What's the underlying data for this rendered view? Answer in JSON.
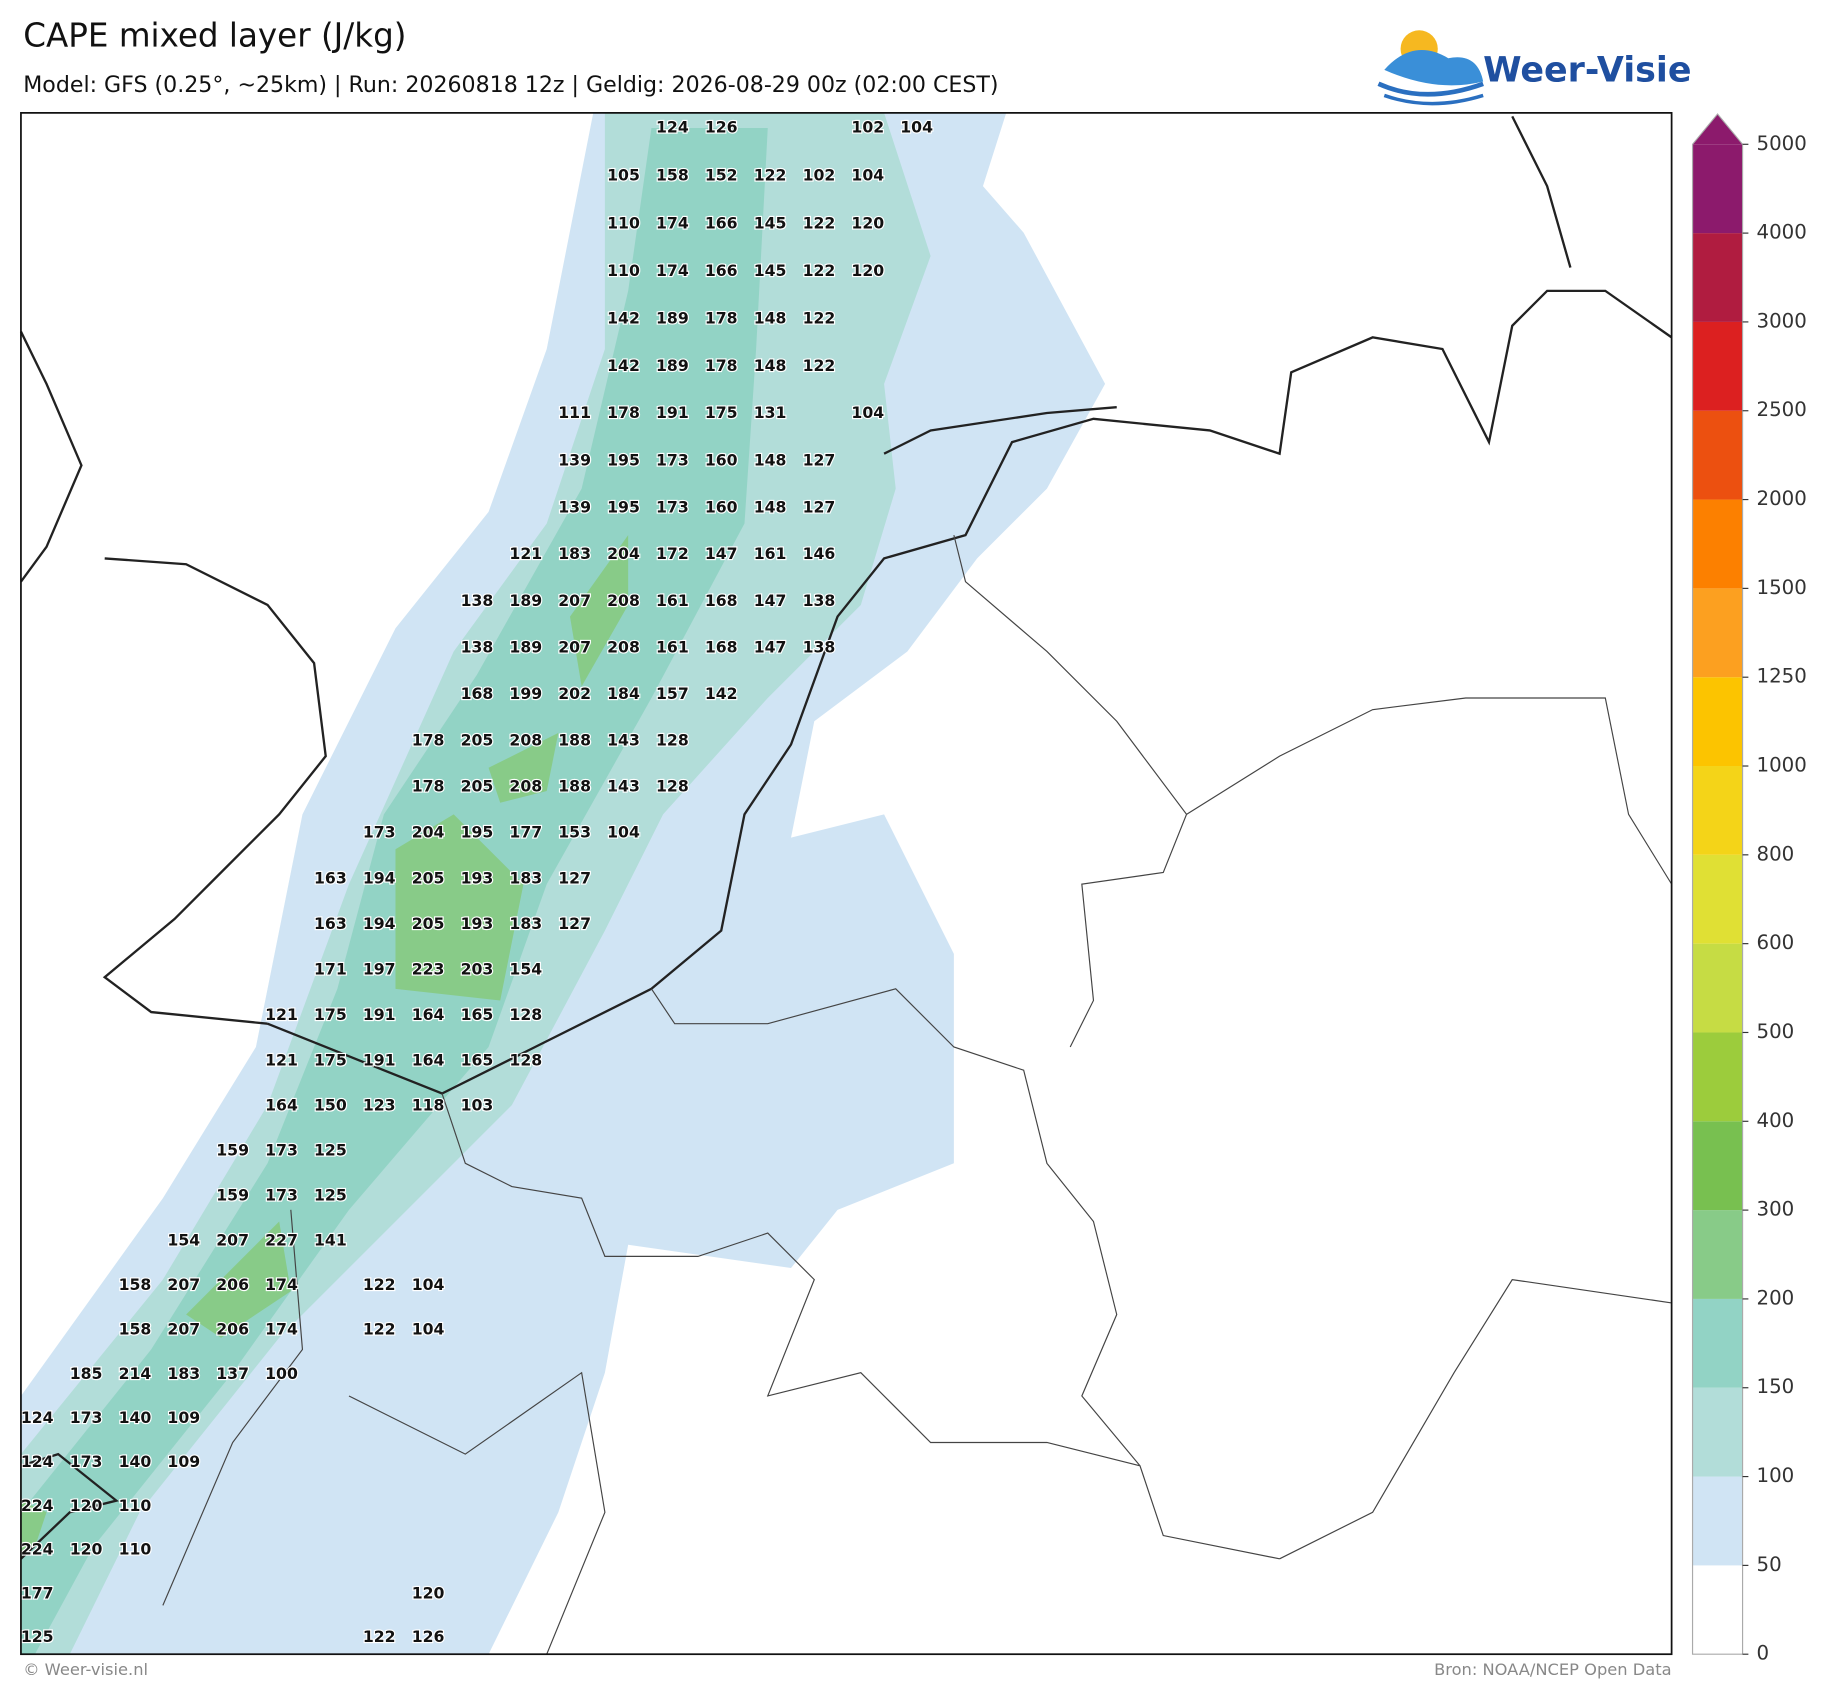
{
  "header": {
    "title": "CAPE mixed layer (J/kg)",
    "subtitle": "Model: GFS (0.25°, ~25km)  |  Run: 20260818 12z  |  Geldig: 2026-08-29 00z (02:00 CEST)",
    "logo": "Weer-Visie"
  },
  "map": {
    "grid_labels": [
      [
        null,
        null,
        null,
        null,
        null,
        null,
        null,
        null,
        null,
        null,
        null,
        null,
        null,
        124,
        126,
        null,
        null,
        102,
        104
      ],
      [
        null,
        null,
        null,
        null,
        null,
        null,
        null,
        null,
        null,
        null,
        null,
        null,
        105,
        158,
        152,
        122,
        102,
        104,
        null
      ],
      [
        null,
        null,
        null,
        null,
        null,
        null,
        null,
        null,
        null,
        null,
        null,
        null,
        110,
        174,
        166,
        145,
        122,
        120,
        null
      ],
      [
        null,
        null,
        null,
        null,
        null,
        null,
        null,
        null,
        null,
        null,
        null,
        null,
        110,
        174,
        166,
        145,
        122,
        120,
        null
      ],
      [
        null,
        null,
        null,
        null,
        null,
        null,
        null,
        null,
        null,
        null,
        null,
        null,
        142,
        189,
        178,
        148,
        122,
        null,
        null
      ],
      [
        null,
        null,
        null,
        null,
        null,
        null,
        null,
        null,
        null,
        null,
        null,
        null,
        142,
        189,
        178,
        148,
        122,
        null,
        null
      ],
      [
        null,
        null,
        null,
        null,
        null,
        null,
        null,
        null,
        null,
        null,
        null,
        111,
        178,
        191,
        175,
        131,
        null,
        104,
        null
      ],
      [
        null,
        null,
        null,
        null,
        null,
        null,
        null,
        null,
        null,
        null,
        null,
        139,
        195,
        173,
        160,
        148,
        127,
        null,
        null
      ],
      [
        null,
        null,
        null,
        null,
        null,
        null,
        null,
        null,
        null,
        null,
        null,
        139,
        195,
        173,
        160,
        148,
        127,
        null,
        null
      ],
      [
        null,
        null,
        null,
        null,
        null,
        null,
        null,
        null,
        null,
        null,
        121,
        183,
        204,
        172,
        147,
        161,
        146,
        null,
        null
      ],
      [
        null,
        null,
        null,
        null,
        null,
        null,
        null,
        null,
        null,
        138,
        189,
        207,
        208,
        161,
        168,
        147,
        138,
        null,
        null
      ],
      [
        null,
        null,
        null,
        null,
        null,
        null,
        null,
        null,
        null,
        138,
        189,
        207,
        208,
        161,
        168,
        147,
        138,
        null,
        null
      ],
      [
        null,
        null,
        null,
        null,
        null,
        null,
        null,
        null,
        null,
        168,
        199,
        202,
        184,
        157,
        142,
        null,
        null,
        null,
        null
      ],
      [
        null,
        null,
        null,
        null,
        null,
        null,
        null,
        null,
        178,
        205,
        208,
        188,
        143,
        128,
        null,
        null,
        null,
        null,
        null
      ],
      [
        null,
        null,
        null,
        null,
        null,
        null,
        null,
        null,
        178,
        205,
        208,
        188,
        143,
        128,
        null,
        null,
        null,
        null,
        null
      ],
      [
        null,
        null,
        null,
        null,
        null,
        null,
        null,
        173,
        204,
        195,
        177,
        153,
        104,
        null,
        null,
        null,
        null,
        null,
        null
      ],
      [
        null,
        null,
        null,
        null,
        null,
        null,
        163,
        194,
        205,
        193,
        183,
        127,
        null,
        null,
        null,
        null,
        null,
        null,
        null
      ],
      [
        null,
        null,
        null,
        null,
        null,
        null,
        163,
        194,
        205,
        193,
        183,
        127,
        null,
        null,
        null,
        null,
        null,
        null,
        null
      ],
      [
        null,
        null,
        null,
        null,
        null,
        null,
        171,
        197,
        223,
        203,
        154,
        null,
        null,
        null,
        null,
        null,
        null,
        null,
        null
      ],
      [
        null,
        null,
        null,
        null,
        null,
        121,
        175,
        191,
        164,
        165,
        128,
        null,
        null,
        null,
        null,
        null,
        null,
        null,
        null
      ],
      [
        null,
        null,
        null,
        null,
        null,
        121,
        175,
        191,
        164,
        165,
        128,
        null,
        null,
        null,
        null,
        null,
        null,
        null,
        null
      ],
      [
        null,
        null,
        null,
        null,
        null,
        164,
        150,
        123,
        118,
        103,
        null,
        null,
        null,
        null,
        null,
        null,
        null,
        null,
        null
      ],
      [
        null,
        null,
        null,
        null,
        159,
        173,
        125,
        null,
        null,
        null,
        null,
        null,
        null,
        null,
        null,
        null,
        null,
        null,
        null
      ],
      [
        null,
        null,
        null,
        null,
        159,
        173,
        125,
        null,
        null,
        null,
        null,
        null,
        null,
        null,
        null,
        null,
        null,
        null,
        null
      ],
      [
        null,
        null,
        null,
        154,
        207,
        227,
        141,
        null,
        null,
        null,
        null,
        null,
        null,
        null,
        null,
        null,
        null,
        null,
        null
      ],
      [
        null,
        null,
        158,
        207,
        206,
        174,
        null,
        122,
        104,
        null,
        null,
        null,
        null,
        null,
        null,
        null,
        null,
        null,
        null
      ],
      [
        null,
        null,
        158,
        207,
        206,
        174,
        null,
        122,
        104,
        null,
        null,
        null,
        null,
        null,
        null,
        null,
        null,
        null,
        null
      ],
      [
        null,
        185,
        214,
        183,
        137,
        100,
        null,
        null,
        null,
        null,
        null,
        null,
        null,
        null,
        null,
        null,
        null,
        null,
        null
      ],
      [
        124,
        173,
        140,
        109,
        null,
        null,
        null,
        null,
        null,
        null,
        null,
        null,
        null,
        null,
        null,
        null,
        null,
        null,
        null
      ],
      [
        124,
        173,
        140,
        109,
        null,
        null,
        null,
        null,
        null,
        null,
        null,
        null,
        null,
        null,
        null,
        null,
        null,
        null,
        null
      ],
      [
        224,
        120,
        110,
        null,
        null,
        null,
        null,
        null,
        null,
        null,
        null,
        null,
        null,
        null,
        null,
        null,
        null,
        null,
        null
      ],
      [
        224,
        120,
        110,
        null,
        null,
        null,
        null,
        null,
        null,
        null,
        null,
        null,
        null,
        null,
        null,
        null,
        null,
        null,
        null
      ],
      [
        177,
        null,
        null,
        null,
        null,
        null,
        null,
        null,
        120,
        null,
        null,
        null,
        null,
        null,
        null,
        null,
        null,
        null,
        null
      ],
      [
        125,
        null,
        null,
        null,
        null,
        null,
        null,
        122,
        126,
        null,
        null,
        null,
        null,
        null,
        null,
        null,
        null,
        null,
        null
      ]
    ]
  },
  "colorbar": {
    "ticks": [
      0,
      50,
      100,
      150,
      200,
      300,
      400,
      500,
      600,
      800,
      1000,
      1250,
      1500,
      2000,
      2500,
      3000,
      4000,
      5000
    ],
    "colors": [
      "#ffffff",
      "#d0e4f4",
      "#b2ddd9",
      "#92d3c5",
      "#88cb88",
      "#78c050",
      "#9ccc3c",
      "#c6dc44",
      "#e0e034",
      "#f4d418",
      "#fcc400",
      "#fca020",
      "#fc8000",
      "#ec5010",
      "#dc2020",
      "#b01c40",
      "#8c1a6c"
    ]
  },
  "footer": {
    "left": "© Weer-visie.nl",
    "right": "Bron: NOAA/NCEP Open Data"
  }
}
